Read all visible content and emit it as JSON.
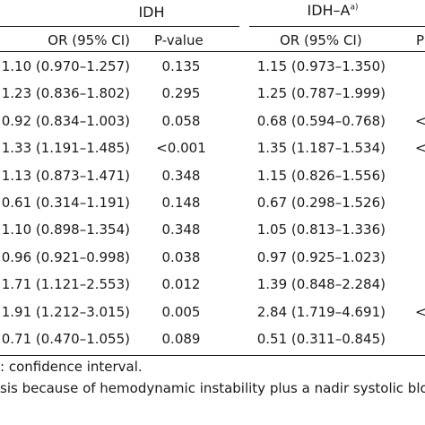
{
  "table": {
    "groups": [
      {
        "label": "IDH",
        "sup": ""
      },
      {
        "label": "IDH–A",
        "sup": "a)"
      }
    ],
    "subheaders": [
      "OR (95% CI)",
      "P-value",
      "OR (95% CI)",
      "P"
    ],
    "rows": [
      [
        "1.10 (0.970–1.257)",
        "0.135",
        "1.15 (0.973–1.350)",
        ""
      ],
      [
        "1.23 (0.836–1.802)",
        "0.295",
        "1.25 (0.787–1.999)",
        ""
      ],
      [
        "0.92 (0.834–1.003)",
        "0.058",
        "0.68 (0.594–0.768)",
        "<"
      ],
      [
        "1.33 (1.191–1.485)",
        "<0.001",
        "1.35 (1.187–1.534)",
        "<"
      ],
      [
        "1.13 (0.873–1.471)",
        "0.348",
        "1.15 (0.826–1.556)",
        ""
      ],
      [
        "0.61 (0.314–1.191)",
        "0.148",
        "0.67 (0.298–1.526)",
        ""
      ],
      [
        "1.10 (0.898–1.354)",
        "0.348",
        "1.05 (0.813–1.336)",
        ""
      ],
      [
        "0.96 (0.921–0.998)",
        "0.038",
        "0.97 (0.925–1.023)",
        ""
      ],
      [
        "1.71 (1.121–2.553)",
        "0.012",
        "1.39 (0.848–2.284)",
        ""
      ],
      [
        "1.91 (1.212–3.015)",
        "0.005",
        "2.84 (1.719–4.691)",
        "<"
      ],
      [
        "0.71 (0.470–1.055)",
        "0.089",
        "0.51 (0.311–0.845)",
        ""
      ]
    ]
  },
  "footnotes": [
    ": confidence interval.",
    "sis because of hemodynamic instability plus a nadir systolic bloo"
  ]
}
